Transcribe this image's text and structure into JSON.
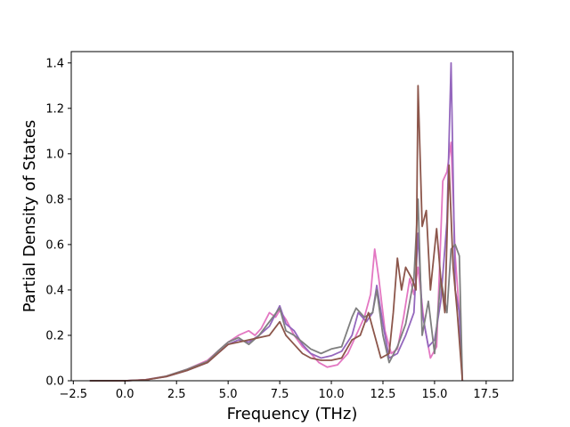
{
  "chart_data": {
    "type": "line",
    "title": "",
    "xlabel": "Frequency (THz)",
    "ylabel": "Partial Density of States",
    "xlim": [
      -2.6,
      18.8
    ],
    "ylim": [
      0.0,
      1.45
    ],
    "xticks": [
      -2.5,
      0.0,
      2.5,
      5.0,
      7.5,
      10.0,
      12.5,
      15.0,
      17.5
    ],
    "xtick_labels": [
      "−2.5",
      "0.0",
      "2.5",
      "5.0",
      "7.5",
      "10.0",
      "12.5",
      "15.0",
      "17.5"
    ],
    "yticks": [
      0.0,
      0.2,
      0.4,
      0.6,
      0.8,
      1.0,
      1.2,
      1.4
    ],
    "ytick_labels": [
      "0.0",
      "0.2",
      "0.4",
      "0.6",
      "0.8",
      "1.0",
      "1.2",
      "1.4"
    ],
    "grid": false,
    "legend": "none",
    "series": [
      {
        "color": "#e377c2",
        "points": [
          [
            -1.7,
            0
          ],
          [
            0,
            0
          ],
          [
            1,
            0.005
          ],
          [
            2,
            0.02
          ],
          [
            3,
            0.05
          ],
          [
            4,
            0.09
          ],
          [
            4.5,
            0.13
          ],
          [
            5,
            0.17
          ],
          [
            5.5,
            0.2
          ],
          [
            6,
            0.22
          ],
          [
            6.3,
            0.2
          ],
          [
            6.6,
            0.23
          ],
          [
            7,
            0.3
          ],
          [
            7.3,
            0.28
          ],
          [
            7.5,
            0.31
          ],
          [
            7.8,
            0.27
          ],
          [
            8.2,
            0.2
          ],
          [
            8.6,
            0.15
          ],
          [
            9.0,
            0.12
          ],
          [
            9.4,
            0.08
          ],
          [
            9.8,
            0.06
          ],
          [
            10.3,
            0.07
          ],
          [
            10.8,
            0.12
          ],
          [
            11.2,
            0.2
          ],
          [
            11.6,
            0.28
          ],
          [
            11.9,
            0.38
          ],
          [
            12.1,
            0.58
          ],
          [
            12.3,
            0.45
          ],
          [
            12.6,
            0.22
          ],
          [
            12.9,
            0.12
          ],
          [
            13.2,
            0.14
          ],
          [
            13.5,
            0.28
          ],
          [
            13.8,
            0.45
          ],
          [
            14.0,
            0.38
          ],
          [
            14.2,
            0.5
          ],
          [
            14.5,
            0.25
          ],
          [
            14.8,
            0.1
          ],
          [
            15.1,
            0.15
          ],
          [
            15.4,
            0.88
          ],
          [
            15.6,
            0.92
          ],
          [
            15.8,
            1.05
          ],
          [
            16.0,
            0.55
          ],
          [
            16.2,
            0.3
          ],
          [
            16.35,
            0
          ]
        ]
      },
      {
        "color": "#9467bd",
        "points": [
          [
            -1.7,
            0
          ],
          [
            0,
            0
          ],
          [
            1,
            0.004
          ],
          [
            2,
            0.018
          ],
          [
            3,
            0.045
          ],
          [
            4,
            0.08
          ],
          [
            4.5,
            0.12
          ],
          [
            5,
            0.16
          ],
          [
            5.5,
            0.18
          ],
          [
            6,
            0.17
          ],
          [
            6.5,
            0.2
          ],
          [
            7,
            0.24
          ],
          [
            7.5,
            0.33
          ],
          [
            7.8,
            0.25
          ],
          [
            8.2,
            0.22
          ],
          [
            8.6,
            0.16
          ],
          [
            9.0,
            0.12
          ],
          [
            9.5,
            0.1
          ],
          [
            10.0,
            0.11
          ],
          [
            10.5,
            0.13
          ],
          [
            11.0,
            0.2
          ],
          [
            11.3,
            0.3
          ],
          [
            11.7,
            0.26
          ],
          [
            12.0,
            0.3
          ],
          [
            12.2,
            0.42
          ],
          [
            12.5,
            0.25
          ],
          [
            12.8,
            0.1
          ],
          [
            13.2,
            0.12
          ],
          [
            13.6,
            0.2
          ],
          [
            14.0,
            0.3
          ],
          [
            14.2,
            0.65
          ],
          [
            14.4,
            0.3
          ],
          [
            14.7,
            0.15
          ],
          [
            15.0,
            0.18
          ],
          [
            15.3,
            0.35
          ],
          [
            15.6,
            0.7
          ],
          [
            15.8,
            1.4
          ],
          [
            16.0,
            0.4
          ],
          [
            16.2,
            0.3
          ],
          [
            16.35,
            0
          ]
        ]
      },
      {
        "color": "#7f7f7f",
        "points": [
          [
            -1.7,
            0
          ],
          [
            0,
            0
          ],
          [
            1,
            0.004
          ],
          [
            2,
            0.02
          ],
          [
            3,
            0.05
          ],
          [
            4,
            0.085
          ],
          [
            4.5,
            0.13
          ],
          [
            5,
            0.17
          ],
          [
            5.5,
            0.19
          ],
          [
            6,
            0.16
          ],
          [
            6.5,
            0.2
          ],
          [
            7,
            0.26
          ],
          [
            7.5,
            0.32
          ],
          [
            7.8,
            0.22
          ],
          [
            8.2,
            0.2
          ],
          [
            8.6,
            0.17
          ],
          [
            9.0,
            0.14
          ],
          [
            9.5,
            0.12
          ],
          [
            10.0,
            0.14
          ],
          [
            10.5,
            0.15
          ],
          [
            11.0,
            0.28
          ],
          [
            11.2,
            0.32
          ],
          [
            11.6,
            0.28
          ],
          [
            12.0,
            0.3
          ],
          [
            12.2,
            0.4
          ],
          [
            12.5,
            0.2
          ],
          [
            12.8,
            0.08
          ],
          [
            13.2,
            0.15
          ],
          [
            13.6,
            0.25
          ],
          [
            14.0,
            0.45
          ],
          [
            14.2,
            0.8
          ],
          [
            14.4,
            0.2
          ],
          [
            14.7,
            0.35
          ],
          [
            15.0,
            0.12
          ],
          [
            15.3,
            0.45
          ],
          [
            15.6,
            0.3
          ],
          [
            15.8,
            0.58
          ],
          [
            16.0,
            0.6
          ],
          [
            16.2,
            0.55
          ],
          [
            16.35,
            0
          ]
        ]
      },
      {
        "color": "#8c564b",
        "points": [
          [
            -1.7,
            0
          ],
          [
            0,
            0
          ],
          [
            1,
            0.004
          ],
          [
            2,
            0.018
          ],
          [
            3,
            0.045
          ],
          [
            4,
            0.08
          ],
          [
            4.5,
            0.12
          ],
          [
            5,
            0.16
          ],
          [
            5.5,
            0.17
          ],
          [
            6,
            0.18
          ],
          [
            6.5,
            0.19
          ],
          [
            7,
            0.2
          ],
          [
            7.5,
            0.26
          ],
          [
            7.8,
            0.2
          ],
          [
            8.2,
            0.16
          ],
          [
            8.6,
            0.12
          ],
          [
            9.0,
            0.1
          ],
          [
            9.5,
            0.09
          ],
          [
            10.0,
            0.09
          ],
          [
            10.5,
            0.1
          ],
          [
            11.0,
            0.18
          ],
          [
            11.4,
            0.2
          ],
          [
            11.8,
            0.3
          ],
          [
            12.1,
            0.2
          ],
          [
            12.4,
            0.1
          ],
          [
            12.8,
            0.12
          ],
          [
            13.0,
            0.3
          ],
          [
            13.2,
            0.54
          ],
          [
            13.4,
            0.4
          ],
          [
            13.6,
            0.5
          ],
          [
            13.9,
            0.45
          ],
          [
            14.1,
            0.4
          ],
          [
            14.2,
            1.3
          ],
          [
            14.4,
            0.68
          ],
          [
            14.6,
            0.75
          ],
          [
            14.8,
            0.4
          ],
          [
            15.1,
            0.67
          ],
          [
            15.3,
            0.45
          ],
          [
            15.5,
            0.3
          ],
          [
            15.7,
            0.95
          ],
          [
            15.9,
            0.5
          ],
          [
            16.1,
            0.3
          ],
          [
            16.35,
            0
          ]
        ]
      }
    ]
  }
}
